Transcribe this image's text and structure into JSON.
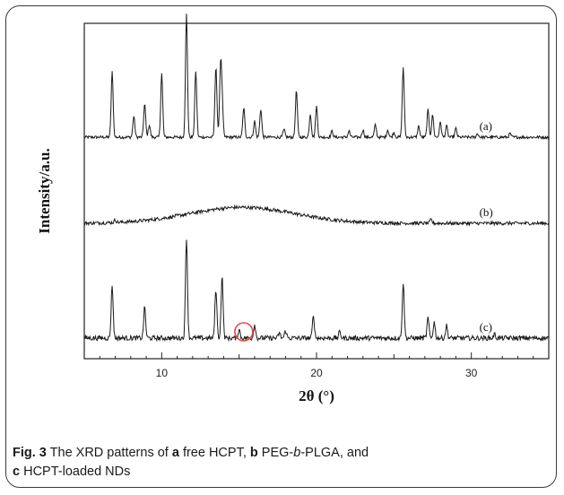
{
  "caption": {
    "fig_label": "Fig. 3",
    "text_1": " The XRD patterns of ",
    "letter_a": "a",
    "text_2": " free HCPT, ",
    "letter_b": "b",
    "text_3": " PEG-",
    "text_3_italic": "b",
    "text_4": "-PLGA, and",
    "letter_c": "c",
    "text_5": " HCPT-loaded NDs"
  },
  "chart_data": {
    "type": "line",
    "xlabel": "2θ (°)",
    "ylabel": "Intensity/a.u.",
    "xlim": [
      5,
      35
    ],
    "xticks": [
      10,
      20,
      30
    ],
    "y_ticks_shown": false,
    "series": [
      {
        "name": "(a)",
        "baseline": 0.0,
        "noise": 0.012,
        "peaks": [
          {
            "x": 6.8,
            "h": 0.53
          },
          {
            "x": 8.2,
            "h": 0.17
          },
          {
            "x": 8.9,
            "h": 0.27
          },
          {
            "x": 9.2,
            "h": 0.1
          },
          {
            "x": 10.0,
            "h": 0.52
          },
          {
            "x": 11.6,
            "h": 1.0
          },
          {
            "x": 12.2,
            "h": 0.54
          },
          {
            "x": 13.5,
            "h": 0.58
          },
          {
            "x": 13.8,
            "h": 0.55
          },
          {
            "x": 13.9,
            "h": 0.27
          },
          {
            "x": 15.3,
            "h": 0.24
          },
          {
            "x": 16.0,
            "h": 0.13
          },
          {
            "x": 16.4,
            "h": 0.23
          },
          {
            "x": 17.9,
            "h": 0.06
          },
          {
            "x": 18.7,
            "h": 0.38
          },
          {
            "x": 19.6,
            "h": 0.19
          },
          {
            "x": 20.0,
            "h": 0.25
          },
          {
            "x": 21.0,
            "h": 0.05
          },
          {
            "x": 22.1,
            "h": 0.05
          },
          {
            "x": 23.0,
            "h": 0.06
          },
          {
            "x": 23.8,
            "h": 0.1
          },
          {
            "x": 24.6,
            "h": 0.06
          },
          {
            "x": 25.0,
            "h": 0.04
          },
          {
            "x": 25.6,
            "h": 0.57
          },
          {
            "x": 26.6,
            "h": 0.09
          },
          {
            "x": 27.2,
            "h": 0.22
          },
          {
            "x": 27.5,
            "h": 0.18
          },
          {
            "x": 28.0,
            "h": 0.12
          },
          {
            "x": 28.4,
            "h": 0.09
          },
          {
            "x": 29.0,
            "h": 0.07
          },
          {
            "x": 30.4,
            "h": 0.03
          },
          {
            "x": 32.5,
            "h": 0.03
          }
        ]
      },
      {
        "name": "(b)",
        "baseline": 0.0,
        "noise": 0.014,
        "hump": {
          "center": 15.2,
          "width": 4.8,
          "height": 0.13
        },
        "peaks": [
          {
            "x": 7.0,
            "h": 0.02
          },
          {
            "x": 27.4,
            "h": 0.03
          }
        ]
      },
      {
        "name": "(c)",
        "baseline": 0.0,
        "noise": 0.02,
        "peaks": [
          {
            "x": 6.8,
            "h": 0.43
          },
          {
            "x": 8.9,
            "h": 0.25
          },
          {
            "x": 11.6,
            "h": 0.82
          },
          {
            "x": 13.5,
            "h": 0.4
          },
          {
            "x": 13.9,
            "h": 0.5
          },
          {
            "x": 15.0,
            "h": 0.07
          },
          {
            "x": 16.0,
            "h": 0.11
          },
          {
            "x": 17.6,
            "h": 0.04
          },
          {
            "x": 18.0,
            "h": 0.06
          },
          {
            "x": 19.8,
            "h": 0.18
          },
          {
            "x": 21.5,
            "h": 0.05
          },
          {
            "x": 25.6,
            "h": 0.45
          },
          {
            "x": 27.2,
            "h": 0.16
          },
          {
            "x": 27.6,
            "h": 0.13
          },
          {
            "x": 28.4,
            "h": 0.1
          },
          {
            "x": 31.5,
            "h": 0.03
          }
        ]
      }
    ],
    "annotation": {
      "type": "circle",
      "x": 15.3,
      "series": "(c)",
      "color": "#e64a4a"
    }
  }
}
